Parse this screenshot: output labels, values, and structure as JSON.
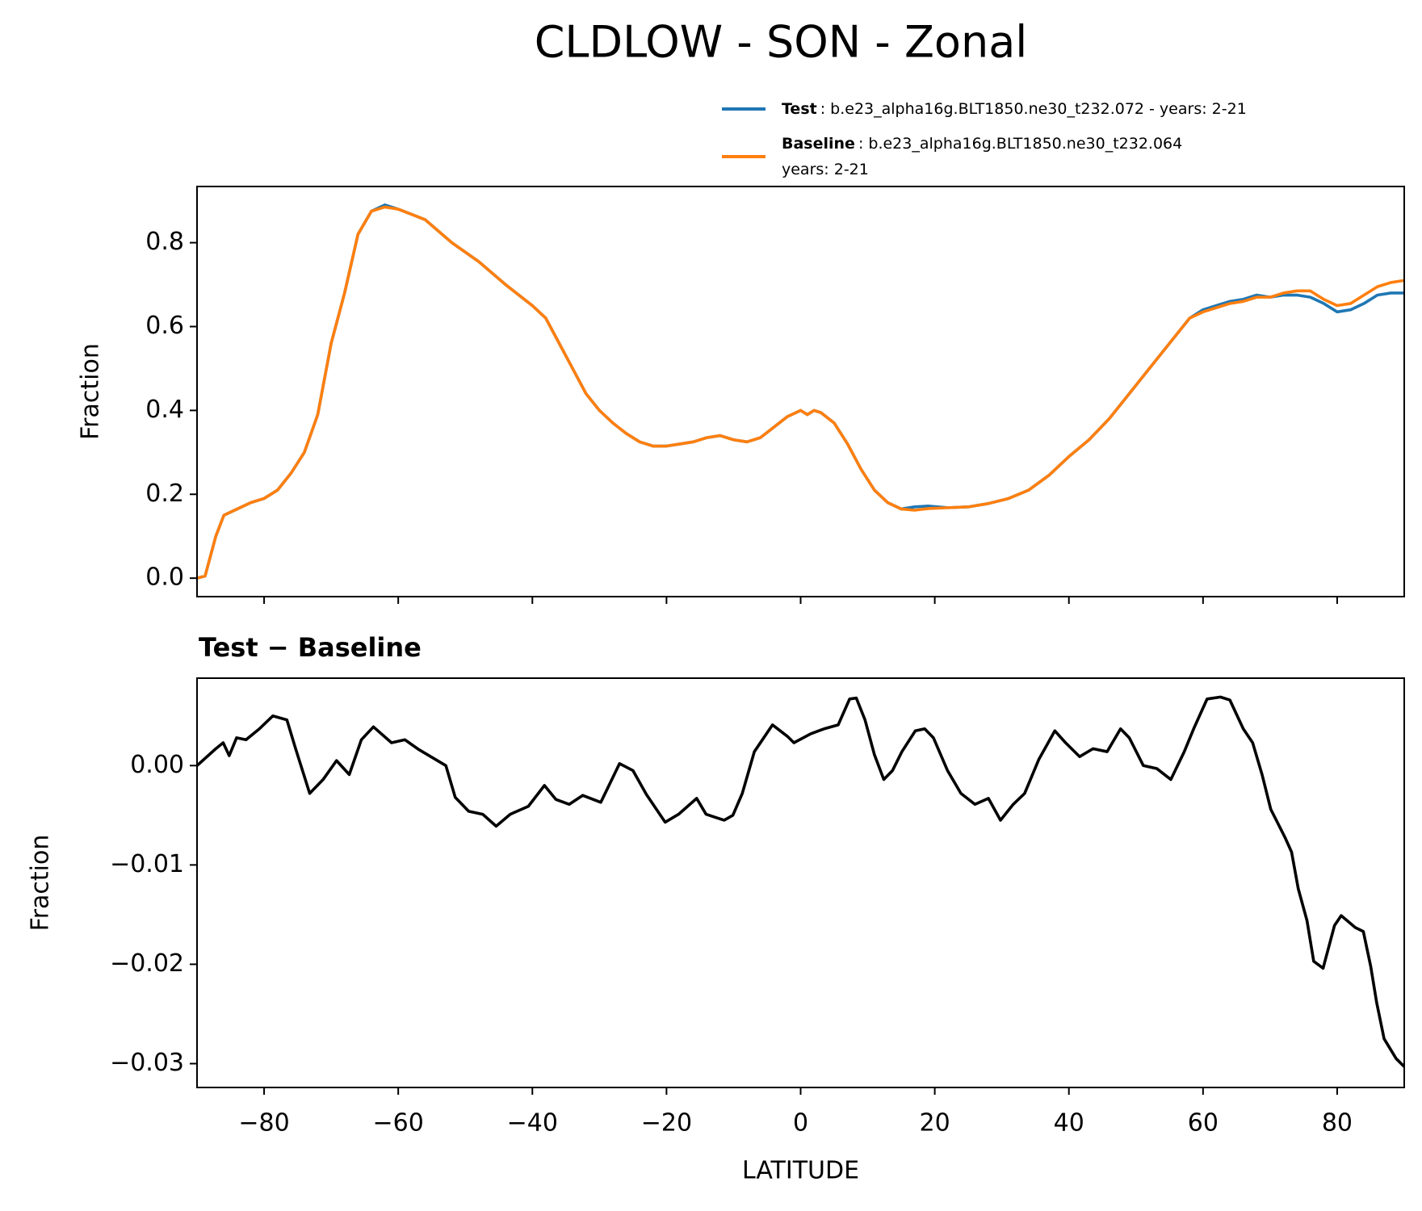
{
  "chart_data": [
    {
      "type": "line",
      "title": "CLDLOW - SON - Zonal",
      "ylabel": "Fraction",
      "xlim": [
        -90,
        90
      ],
      "ylim": [
        -0.044,
        0.934
      ],
      "xticks": [
        -80,
        -60,
        -40,
        -20,
        0,
        20,
        40,
        60,
        80
      ],
      "xtick_labels": false,
      "yticks": [
        {
          "value": 0,
          "label": "0.0"
        },
        0.2,
        0.4,
        0.6,
        0.8
      ],
      "legend": "upper right",
      "x": [
        -90,
        -88.8,
        -87.2,
        -86,
        -84,
        -82,
        -80,
        -78,
        -76,
        -74,
        -72,
        -70,
        -68,
        -66,
        -64,
        -62,
        -60,
        -56,
        -52,
        -48,
        -44,
        -40,
        -38,
        -36,
        -34,
        -32,
        -30,
        -28,
        -26,
        -24,
        -22,
        -20,
        -18,
        -16,
        -14,
        -12,
        -10,
        -8,
        -6,
        -4,
        -2,
        0,
        1,
        2,
        3,
        5,
        7,
        9,
        11,
        13,
        15,
        17,
        19,
        22,
        25,
        28,
        31,
        34,
        37,
        40,
        43,
        46,
        49,
        52,
        55,
        58,
        60,
        62,
        64,
        66,
        68,
        70,
        72,
        74,
        76,
        78,
        80,
        82,
        84,
        86,
        88,
        90
      ],
      "series": [
        {
          "name": "Test",
          "color": "#1f77b4",
          "legend_text": [
            ": b.e23_alpha16g.BLT1850.ne30_t232.072 - years: 2-21"
          ],
          "values": [
            0,
            0.005,
            0.1,
            0.15,
            0.165,
            0.18,
            0.19,
            0.21,
            0.25,
            0.3,
            0.39,
            0.56,
            0.68,
            0.82,
            0.875,
            0.89,
            0.88,
            0.855,
            0.8,
            0.755,
            0.7,
            0.65,
            0.62,
            0.56,
            0.5,
            0.44,
            0.4,
            0.37,
            0.345,
            0.325,
            0.315,
            0.315,
            0.32,
            0.325,
            0.335,
            0.34,
            0.33,
            0.325,
            0.335,
            0.36,
            0.385,
            0.4,
            0.39,
            0.4,
            0.395,
            0.37,
            0.32,
            0.26,
            0.21,
            0.18,
            0.165,
            0.17,
            0.172,
            0.168,
            0.17,
            0.178,
            0.19,
            0.21,
            0.245,
            0.29,
            0.33,
            0.38,
            0.44,
            0.5,
            0.56,
            0.62,
            0.64,
            0.65,
            0.66,
            0.665,
            0.675,
            0.67,
            0.675,
            0.675,
            0.67,
            0.655,
            0.635,
            0.64,
            0.655,
            0.675,
            0.68,
            0.68
          ]
        },
        {
          "name": "Baseline",
          "color": "#ff7f0e",
          "legend_text": [
            ": b.e23_alpha16g.BLT1850.ne30_t232.064",
            "years: 2-21"
          ],
          "values": [
            0,
            0.005,
            0.1,
            0.15,
            0.165,
            0.18,
            0.19,
            0.21,
            0.25,
            0.3,
            0.39,
            0.56,
            0.68,
            0.82,
            0.875,
            0.885,
            0.88,
            0.855,
            0.8,
            0.755,
            0.7,
            0.65,
            0.62,
            0.56,
            0.5,
            0.44,
            0.4,
            0.37,
            0.345,
            0.325,
            0.315,
            0.315,
            0.32,
            0.325,
            0.335,
            0.34,
            0.33,
            0.325,
            0.335,
            0.36,
            0.385,
            0.4,
            0.39,
            0.4,
            0.395,
            0.37,
            0.32,
            0.26,
            0.21,
            0.18,
            0.165,
            0.162,
            0.166,
            0.168,
            0.17,
            0.178,
            0.19,
            0.21,
            0.245,
            0.29,
            0.33,
            0.38,
            0.44,
            0.5,
            0.56,
            0.62,
            0.635,
            0.645,
            0.655,
            0.66,
            0.67,
            0.67,
            0.68,
            0.685,
            0.685,
            0.665,
            0.65,
            0.655,
            0.675,
            0.695,
            0.705,
            0.71
          ]
        }
      ]
    },
    {
      "type": "line",
      "title": "Test − Baseline",
      "ylabel": "Fraction",
      "xlabel": "LATITUDE",
      "xlim": [
        -90,
        90
      ],
      "ylim": [
        -0.0324,
        0.0088
      ],
      "color": "#000000",
      "xticks": [
        {
          "value": -80,
          "label": "−80"
        },
        {
          "value": -60,
          "label": "−60"
        },
        {
          "value": -40,
          "label": "−40"
        },
        {
          "value": -20,
          "label": "−20"
        },
        0,
        20,
        40,
        60,
        80
      ],
      "xtick_labels": true,
      "yticks": [
        {
          "value": -0.03,
          "label": "−0.03"
        },
        {
          "value": -0.02,
          "label": "−0.02"
        },
        {
          "value": -0.01,
          "label": "−0.01"
        },
        {
          "value": 0,
          "label": "0.00"
        }
      ],
      "x": [
        -90,
        -87.2,
        -86.1,
        -85.2,
        -84.1,
        -82.7,
        -80.7,
        -78.7,
        -76.6,
        -75.3,
        -73.2,
        -71.2,
        -69.2,
        -67.3,
        -65.5,
        -63.7,
        -61,
        -59,
        -56.9,
        -52.9,
        -51.5,
        -49.5,
        -47.4,
        -45.4,
        -43.3,
        -40.6,
        -38.2,
        -36.5,
        -34.5,
        -32.5,
        -29.8,
        -27,
        -25,
        -23,
        -20.2,
        -18.2,
        -15.5,
        -14.1,
        -11.4,
        -10.1,
        -8.7,
        -6.9,
        -4.2,
        -1.9,
        -1,
        1.5,
        3.5,
        5.6,
        7.3,
        8.3,
        9.6,
        11,
        12.4,
        13.7,
        15.1,
        17.1,
        18.5,
        19.8,
        21.9,
        23.9,
        26,
        28,
        29.8,
        31.7,
        33.4,
        35.5,
        37.9,
        39.5,
        41.6,
        43.6,
        45.7,
        47.7,
        49,
        51.1,
        53.1,
        55.2,
        57.2,
        58.6,
        60.6,
        62.6,
        64,
        66,
        67.4,
        68.8,
        70.1,
        72.2,
        73.2,
        74.2,
        75.5,
        76.5,
        77.9,
        79.6,
        80.6,
        82.7,
        83.9,
        85,
        85.9,
        87,
        88.8,
        90
      ],
      "values": [
        0,
        0.0017,
        0.0023,
        0.001,
        0.0028,
        0.0026,
        0.0037,
        0.005,
        0.0046,
        0.0017,
        -0.0028,
        -0.0014,
        0.0005,
        -0.0009,
        0.0026,
        0.0039,
        0.0023,
        0.0026,
        0.0016,
        0,
        -0.0032,
        -0.0046,
        -0.0049,
        -0.0061,
        -0.0049,
        -0.0041,
        -0.002,
        -0.0034,
        -0.0039,
        -0.003,
        -0.0037,
        0.0002,
        -0.0005,
        -0.0029,
        -0.0057,
        -0.0049,
        -0.0033,
        -0.0049,
        -0.0055,
        -0.005,
        -0.0028,
        0.0014,
        0.0041,
        0.0029,
        0.0023,
        0.0032,
        0.0037,
        0.0041,
        0.0067,
        0.0068,
        0.0046,
        0.0011,
        -0.0014,
        -0.0005,
        0.0014,
        0.0035,
        0.0037,
        0.0028,
        -0.0005,
        -0.0028,
        -0.0039,
        -0.0033,
        -0.0055,
        -0.0039,
        -0.0028,
        0.0006,
        0.0035,
        0.0023,
        0.0009,
        0.0017,
        0.0014,
        0.0037,
        0.0028,
        0,
        -0.0003,
        -0.0014,
        0.0014,
        0.0037,
        0.0067,
        0.0069,
        0.0066,
        0.0037,
        0.0023,
        -0.0009,
        -0.0044,
        -0.0072,
        -0.0087,
        -0.0124,
        -0.0156,
        -0.0197,
        -0.0204,
        -0.0161,
        -0.0151,
        -0.0163,
        -0.0167,
        -0.0202,
        -0.0239,
        -0.0275,
        -0.0295,
        -0.0303
      ]
    }
  ]
}
